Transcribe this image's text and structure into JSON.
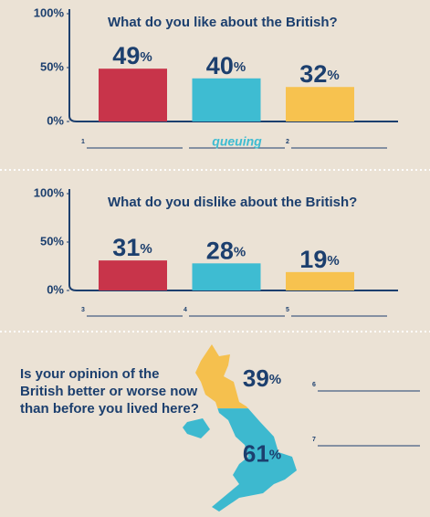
{
  "chart_data": [
    {
      "type": "bar",
      "title": "What do you like about the British?",
      "values": [
        49,
        40,
        32
      ],
      "value_labels": [
        "49%",
        "40%",
        "32%"
      ],
      "colors": [
        "#c8344a",
        "#3ebcd2",
        "#f7c24f"
      ],
      "ylim": [
        0,
        100
      ],
      "yticks": [
        {
          "value": 0,
          "label": "0%"
        },
        {
          "value": 50,
          "label": "50%"
        },
        {
          "value": 100,
          "label": "100%"
        }
      ],
      "answer_labels": [
        "1",
        "queuing",
        "2"
      ]
    },
    {
      "type": "bar",
      "title": "What do you dislike about the British?",
      "values": [
        31,
        28,
        19
      ],
      "value_labels": [
        "31%",
        "28%",
        "19%"
      ],
      "colors": [
        "#c8344a",
        "#3ebcd2",
        "#f7c24f"
      ],
      "ylim": [
        0,
        100
      ],
      "yticks": [
        {
          "value": 0,
          "label": "0%"
        },
        {
          "value": 50,
          "label": "50%"
        },
        {
          "value": 100,
          "label": "100%"
        }
      ],
      "answer_labels": [
        "3",
        "4",
        "5"
      ]
    },
    {
      "type": "map",
      "title": "Is your opinion of the British better or worse now than before you lived here?",
      "values": [
        39,
        61
      ],
      "value_labels": [
        "39%",
        "61%"
      ],
      "colors": [
        "#f5c04e",
        "#3db9cf"
      ],
      "answer_labels": [
        "6",
        "7"
      ]
    }
  ]
}
